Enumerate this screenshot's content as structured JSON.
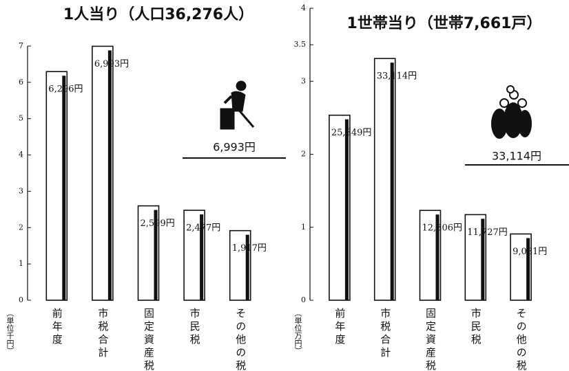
{
  "chart_data": [
    {
      "type": "bar",
      "title": "1人当り（人口36,276人）",
      "y_axis_label": "（単位千円）",
      "categories": [
        "前年度",
        "市税合計",
        "固定資産税",
        "市民税",
        "その他の税"
      ],
      "values": [
        6.296,
        6.993,
        2.599,
        2.477,
        1.917
      ],
      "value_labels": [
        "6,296円",
        "6,993円",
        "2,599円",
        "2,477円",
        "1,917円"
      ],
      "annotation": "6,993円",
      "color": "#ffffff",
      "ylim": [
        0,
        7
      ],
      "yticks": [
        0,
        1,
        2,
        3,
        4,
        5,
        6,
        7
      ]
    },
    {
      "type": "bar",
      "title": "1世帯当り（世帯7,661戸）",
      "y_axis_label": "（単位万円）",
      "categories": [
        "前年度",
        "市税合計",
        "固定資産税",
        "市民税",
        "その他の税"
      ],
      "values": [
        2.5349,
        3.3114,
        1.2306,
        1.1727,
        0.9081
      ],
      "value_labels": [
        "25,349円",
        "33,114円",
        "12,306円",
        "11,727円",
        "9,081円"
      ],
      "annotation": "33,114円",
      "color": "#ffffff",
      "ylim": [
        0,
        4
      ],
      "yticks": [
        0,
        1,
        2,
        3,
        3.5,
        4
      ]
    }
  ]
}
